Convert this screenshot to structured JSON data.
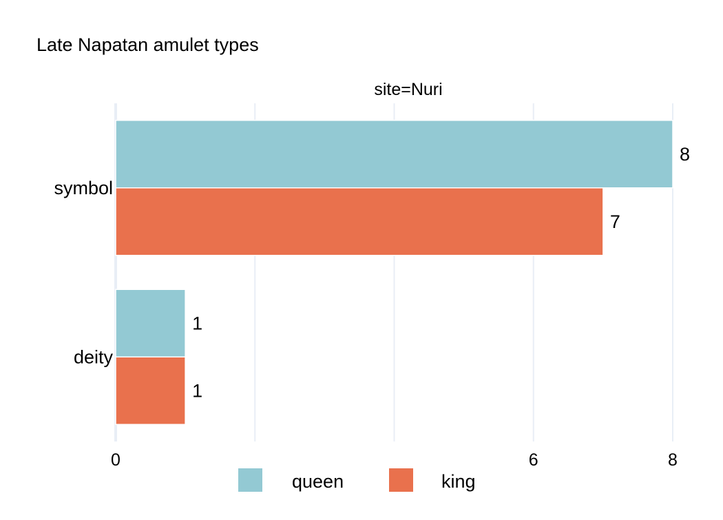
{
  "chart_data": {
    "type": "bar",
    "orientation": "horizontal",
    "title": "Late Napatan amulet types",
    "facet_label": "site=Nuri",
    "categories": [
      "symbol",
      "deity"
    ],
    "series": [
      {
        "name": "queen",
        "values": [
          8,
          1
        ],
        "color": "#93c9d3"
      },
      {
        "name": "king",
        "values": [
          7,
          1
        ],
        "color": "#e9714d"
      }
    ],
    "xlim": [
      0,
      8
    ],
    "x_ticks": [
      0,
      2,
      4,
      6,
      8
    ],
    "x_tick_labels": [
      "0",
      "",
      "",
      "6",
      "8"
    ],
    "xlabel": "",
    "ylabel": "",
    "data_labels": true,
    "grid": true,
    "grid_color": "#e9eef6",
    "legend_position": "bottom"
  }
}
